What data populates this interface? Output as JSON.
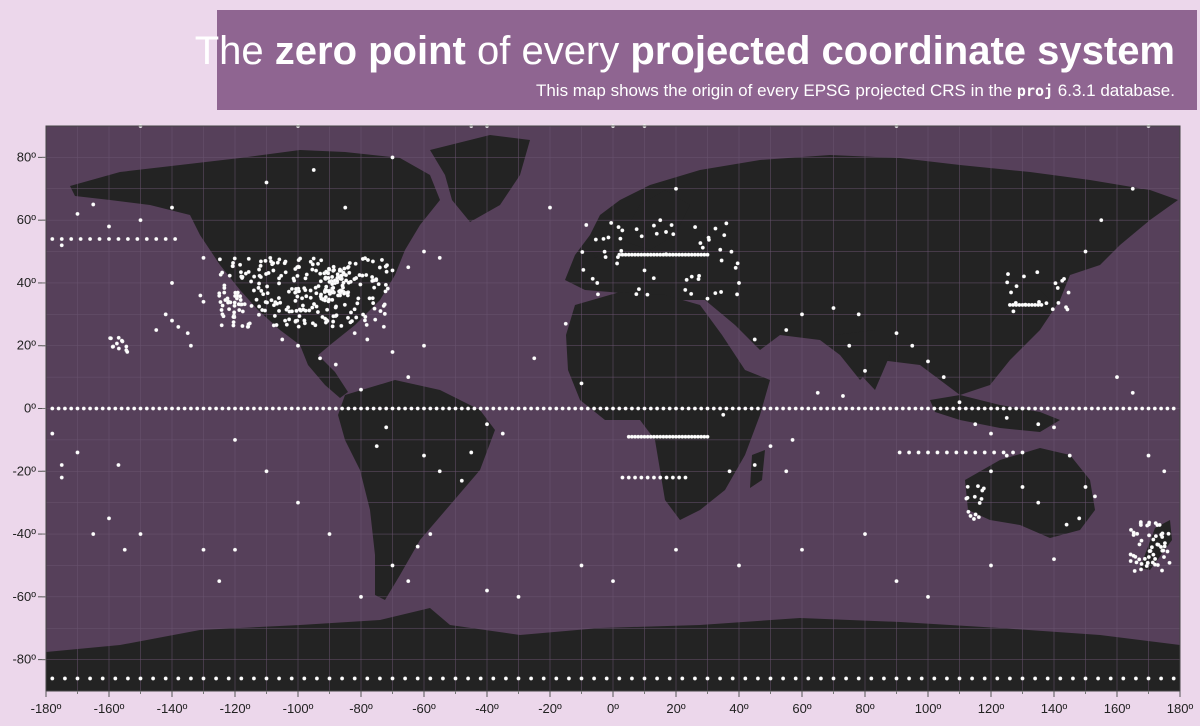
{
  "header": {
    "title_prefix": "The",
    "title_bold_1": "zero point",
    "title_mid": "of every",
    "title_bold_2": "projected coordinate system",
    "subtitle_prefix": "This map shows the origin of every EPSG projected CRS in the",
    "subtitle_code": "proj",
    "subtitle_suffix": "6.3.1 database."
  },
  "colors": {
    "page_bg": "#ecd7eb",
    "banner_bg": "#8f6591",
    "ocean": "#56405a",
    "land": "#232323",
    "grid": "#6a5470",
    "points": "#ffffff",
    "axis_text": "#222222"
  },
  "map": {
    "projection": "equirectangular",
    "xlim": [
      -180,
      180
    ],
    "ylim": [
      -90,
      90
    ],
    "x_ticks": [
      -180,
      -160,
      -140,
      -120,
      -100,
      -80,
      -60,
      -40,
      -20,
      0,
      20,
      40,
      60,
      80,
      100,
      120,
      140,
      160,
      180
    ],
    "x_tick_labels": [
      "-180º",
      "-160º",
      "-140º",
      "-120º",
      "-100º",
      "-80º",
      "-60º",
      "-40º",
      "-20º",
      "0º",
      "20º",
      "40º",
      "60º",
      "80º",
      "100º",
      "120º",
      "140º",
      "160º",
      "180º"
    ],
    "y_ticks": [
      80,
      60,
      40,
      20,
      0,
      -20,
      -40,
      -60,
      -80
    ],
    "y_tick_labels": [
      "80º",
      "60º",
      "40º",
      "20º",
      "0º",
      "-20º",
      "-40º",
      "-60º",
      "-80º"
    ],
    "grid": true,
    "point_lines": [
      {
        "lat": 0,
        "lon_from": -178,
        "lon_to": 178,
        "step": 2
      },
      {
        "lat": -86,
        "lon_from": -178,
        "lon_to": 178,
        "step": 4
      },
      {
        "lat": 54,
        "lon_from": -178,
        "lon_to": -138,
        "step": 3
      },
      {
        "lat": 49,
        "lon_from": 2,
        "lon_to": 30,
        "step": 1
      },
      {
        "lat": -9,
        "lon_from": 5,
        "lon_to": 30,
        "step": 1
      },
      {
        "lat": -22,
        "lon_from": 3,
        "lon_to": 24,
        "step": 2
      },
      {
        "lat": -14,
        "lon_from": 91,
        "lon_to": 130,
        "step": 3
      },
      {
        "lat": 33,
        "lon_from": 126,
        "lon_to": 136,
        "step": 1
      }
    ],
    "point_clusters": [
      {
        "lon_min": -125,
        "lon_max": -70,
        "lat_min": 26,
        "lat_max": 48,
        "count": 260
      },
      {
        "lon_min": -92,
        "lon_max": -84,
        "lat_min": 36,
        "lat_max": 45,
        "count": 60
      },
      {
        "lon_min": 164,
        "lon_max": 177,
        "lat_min": -52,
        "lat_max": -36,
        "count": 55
      },
      {
        "lon_min": -160,
        "lon_max": -154,
        "lat_min": 18,
        "lat_max": 23,
        "count": 12
      },
      {
        "lon_min": 112,
        "lon_max": 118,
        "lat_min": -36,
        "lat_max": -24,
        "count": 14
      },
      {
        "lon_min": -10,
        "lon_max": 40,
        "lat_min": 36,
        "lat_max": 60,
        "count": 50
      },
      {
        "lon_min": 125,
        "lon_max": 145,
        "lat_min": 30,
        "lat_max": 45,
        "count": 20
      }
    ],
    "scattered_points": [
      [
        -150,
        90
      ],
      [
        -100,
        90
      ],
      [
        -45,
        90
      ],
      [
        -40,
        90
      ],
      [
        0,
        90
      ],
      [
        10,
        90
      ],
      [
        90,
        90
      ],
      [
        170,
        90
      ],
      [
        -178,
        -8
      ],
      [
        -170,
        -14
      ],
      [
        -175,
        -22
      ],
      [
        -160,
        -35
      ],
      [
        -165,
        -40
      ],
      [
        -155,
        -45
      ],
      [
        -157,
        -18
      ],
      [
        -150,
        -40
      ],
      [
        -140,
        28
      ],
      [
        -142,
        30
      ],
      [
        -138,
        26
      ],
      [
        -135,
        24
      ],
      [
        -134,
        20
      ],
      [
        -145,
        25
      ],
      [
        -130,
        34
      ],
      [
        -131,
        36
      ],
      [
        -110,
        72
      ],
      [
        -95,
        76
      ],
      [
        -85,
        64
      ],
      [
        -70,
        80
      ],
      [
        -72,
        -6
      ],
      [
        -65,
        10
      ],
      [
        -80,
        6
      ],
      [
        -75,
        -12
      ],
      [
        -60,
        -15
      ],
      [
        -55,
        -20
      ],
      [
        -48,
        -23
      ],
      [
        -45,
        -14
      ],
      [
        -40,
        -5
      ],
      [
        -35,
        -8
      ],
      [
        -58,
        -40
      ],
      [
        -62,
        -44
      ],
      [
        -70,
        -50
      ],
      [
        -65,
        -55
      ],
      [
        -20,
        64
      ],
      [
        -15,
        27
      ],
      [
        -25,
        16
      ],
      [
        -10,
        8
      ],
      [
        15,
        60
      ],
      [
        20,
        70
      ],
      [
        40,
        40
      ],
      [
        45,
        22
      ],
      [
        55,
        25
      ],
      [
        60,
        30
      ],
      [
        70,
        32
      ],
      [
        75,
        20
      ],
      [
        80,
        12
      ],
      [
        78,
        30
      ],
      [
        90,
        24
      ],
      [
        95,
        20
      ],
      [
        100,
        15
      ],
      [
        105,
        10
      ],
      [
        110,
        2
      ],
      [
        115,
        -5
      ],
      [
        120,
        -8
      ],
      [
        125,
        -3
      ],
      [
        130,
        0
      ],
      [
        135,
        -5
      ],
      [
        140,
        -6
      ],
      [
        145,
        -15
      ],
      [
        150,
        -25
      ],
      [
        153,
        -28
      ],
      [
        148,
        -35
      ],
      [
        144,
        -37
      ],
      [
        130,
        -25
      ],
      [
        135,
        -30
      ],
      [
        120,
        -20
      ],
      [
        125,
        -15
      ],
      [
        -120,
        -10
      ],
      [
        -110,
        -20
      ],
      [
        -100,
        -30
      ],
      [
        -90,
        -40
      ],
      [
        -130,
        -45
      ],
      [
        -120,
        -45
      ],
      [
        -125,
        -55
      ],
      [
        -80,
        -60
      ],
      [
        -40,
        -58
      ],
      [
        -30,
        -60
      ],
      [
        -10,
        -50
      ],
      [
        0,
        -55
      ],
      [
        20,
        -45
      ],
      [
        40,
        -50
      ],
      [
        60,
        -45
      ],
      [
        80,
        -40
      ],
      [
        90,
        -55
      ],
      [
        100,
        -60
      ],
      [
        120,
        -50
      ],
      [
        140,
        -48
      ],
      [
        -60,
        20
      ],
      [
        -70,
        18
      ],
      [
        -88,
        14
      ],
      [
        -100,
        20
      ],
      [
        -105,
        22
      ],
      [
        -93,
        16
      ],
      [
        -78,
        22
      ],
      [
        -82,
        24
      ],
      [
        35,
        -2
      ],
      [
        37,
        -20
      ],
      [
        45,
        -18
      ],
      [
        50,
        -12
      ],
      [
        55,
        -20
      ],
      [
        57,
        -10
      ],
      [
        65,
        5
      ],
      [
        73,
        4
      ],
      [
        160,
        10
      ],
      [
        165,
        5
      ],
      [
        170,
        -15
      ],
      [
        175,
        -20
      ],
      [
        -175,
        -18
      ],
      [
        150,
        50
      ],
      [
        155,
        60
      ],
      [
        165,
        70
      ],
      [
        -60,
        50
      ],
      [
        -55,
        48
      ],
      [
        -65,
        45
      ],
      [
        -70,
        44
      ],
      [
        -5,
        40
      ],
      [
        10,
        44
      ],
      [
        25,
        42
      ],
      [
        30,
        35
      ],
      [
        -140,
        64
      ],
      [
        -150,
        60
      ],
      [
        -160,
        58
      ],
      [
        -165,
        65
      ],
      [
        -170,
        62
      ],
      [
        -175,
        52
      ],
      [
        -140,
        40
      ],
      [
        -130,
        48
      ]
    ]
  }
}
